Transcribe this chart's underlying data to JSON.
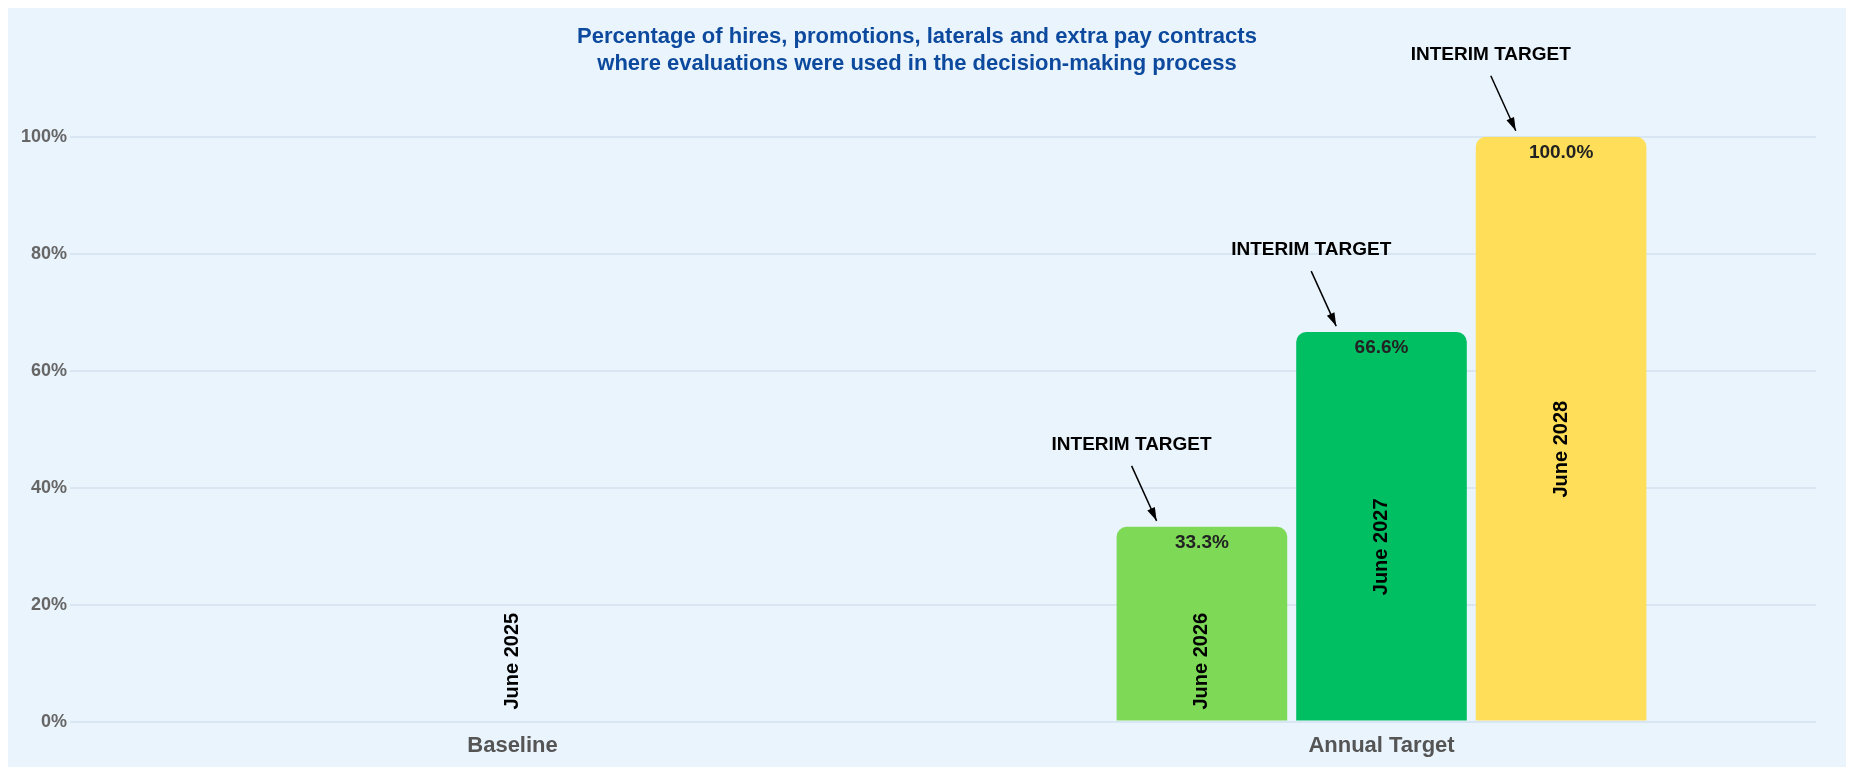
{
  "chart_data": {
    "type": "bar",
    "title": "Percentage of hires, promotions, laterals and extra pay contracts\nwhere evaluations were used in the decision-making process",
    "categories": [
      "Baseline",
      "Annual Target"
    ],
    "series": [
      {
        "name": "June 2025",
        "values": [
          0,
          null
        ],
        "value_labels": [
          null,
          null
        ]
      },
      {
        "name": "June 2026",
        "color": "#7ed957",
        "values": [
          null,
          33.3
        ],
        "value_labels": [
          null,
          "33.3%"
        ]
      },
      {
        "name": "June 2027",
        "color": "#00bf63",
        "values": [
          null,
          66.6
        ],
        "value_labels": [
          null,
          "66.6%"
        ]
      },
      {
        "name": "June 2028",
        "color": "#ffde59",
        "values": [
          null,
          100
        ],
        "value_labels": [
          null,
          "100.0%"
        ]
      }
    ],
    "ylim": [
      0,
      100
    ],
    "yticks": [
      {
        "value": 0,
        "label": "0%"
      },
      {
        "value": 20,
        "label": "20%"
      },
      {
        "value": 40,
        "label": "40%"
      },
      {
        "value": 60,
        "label": "60%"
      },
      {
        "value": 80,
        "label": "80%"
      },
      {
        "value": 100,
        "label": "100%"
      }
    ],
    "grid": "y",
    "legend": false,
    "annotations": [
      "INTERIM TARGET",
      "INTERIM TARGET",
      "INTERIM TARGET"
    ]
  }
}
